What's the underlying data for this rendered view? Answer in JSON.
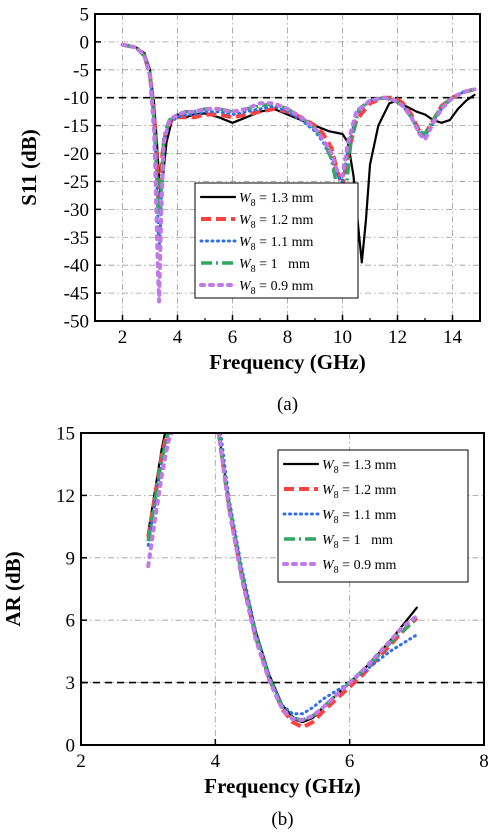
{
  "colors": {
    "series": [
      "#000000",
      "#ff4040",
      "#2f6fe8",
      "#2fa860",
      "#c07ae8"
    ],
    "refline": "#000000",
    "grid": "#9a9a9a"
  },
  "chart_data": [
    {
      "type": "line",
      "caption": "(a)",
      "xlabel": "Frequency (GHz)",
      "ylabel": "S11 (dB)",
      "xlim": [
        1,
        15
      ],
      "ylim": [
        -50,
        5
      ],
      "xticks": [
        2,
        4,
        6,
        8,
        10,
        12,
        14
      ],
      "yticks": [
        -50,
        -45,
        -40,
        -35,
        -30,
        -25,
        -20,
        -15,
        -10,
        -5,
        0,
        5
      ],
      "grid": true,
      "reference_line": -10,
      "legend_position": "center",
      "series": [
        {
          "name": "W8 = 1.3 mm",
          "x": [
            2,
            2.5,
            2.8,
            3.0,
            3.15,
            3.25,
            3.35,
            3.4,
            3.45,
            3.6,
            3.8,
            4.0,
            4.3,
            4.6,
            5.0,
            5.5,
            6.0,
            6.5,
            7.0,
            7.5,
            8.0,
            8.5,
            9.0,
            9.5,
            10.0,
            10.2,
            10.4,
            10.55,
            10.7,
            10.85,
            11.0,
            11.3,
            11.7,
            12.0,
            12.3,
            12.7,
            13.0,
            13.3,
            13.6,
            13.9,
            14.2,
            14.5,
            14.8
          ],
          "y": [
            -0.5,
            -1.0,
            -2.0,
            -5.0,
            -11.0,
            -18.0,
            -26.0,
            -27.5,
            -25.0,
            -18.0,
            -14.0,
            -13.0,
            -13.5,
            -13.0,
            -12.8,
            -13.5,
            -14.5,
            -13.5,
            -12.5,
            -12.0,
            -13.0,
            -14.0,
            -15.0,
            -16.0,
            -16.5,
            -18.0,
            -24.0,
            -32.0,
            -39.5,
            -32.0,
            -22.0,
            -15.0,
            -11.0,
            -10.5,
            -11.5,
            -12.5,
            -13.0,
            -14.0,
            -14.5,
            -14.0,
            -12.0,
            -10.5,
            -9.5
          ]
        },
        {
          "name": "W8 = 1.2 mm",
          "x": [
            2,
            2.5,
            2.8,
            3.0,
            3.15,
            3.25,
            3.3,
            3.38,
            3.45,
            3.6,
            3.8,
            4.0,
            4.3,
            4.6,
            5.0,
            5.5,
            6.0,
            6.5,
            7.0,
            7.5,
            8.0,
            8.5,
            9.0,
            9.3,
            9.6,
            9.8,
            10.0,
            10.2,
            10.5,
            11.0,
            11.5,
            11.9,
            12.2,
            12.5,
            12.8,
            13.0,
            13.3,
            13.6,
            14.0,
            14.4,
            14.8
          ],
          "y": [
            -0.5,
            -1.0,
            -2.5,
            -6.0,
            -13.0,
            -22.0,
            -28.0,
            -27.0,
            -20.0,
            -15.5,
            -14.0,
            -13.5,
            -13.5,
            -13.5,
            -13.0,
            -13.0,
            -13.5,
            -13.0,
            -12.5,
            -12.0,
            -12.5,
            -13.5,
            -15.0,
            -16.5,
            -19.0,
            -23.0,
            -26.0,
            -20.0,
            -14.0,
            -11.0,
            -10.0,
            -10.0,
            -11.0,
            -13.0,
            -16.0,
            -16.5,
            -14.0,
            -11.5,
            -10.0,
            -9.0,
            -8.5
          ]
        },
        {
          "name": "W8 = 1.1 mm",
          "x": [
            2,
            2.5,
            2.8,
            3.0,
            3.15,
            3.25,
            3.3,
            3.35,
            3.4,
            3.5,
            3.7,
            4.0,
            4.3,
            4.6,
            5.0,
            5.5,
            6.0,
            6.5,
            7.0,
            7.5,
            8.0,
            8.5,
            9.0,
            9.3,
            9.6,
            9.8,
            10.0,
            10.2,
            10.5,
            11.0,
            11.5,
            11.9,
            12.2,
            12.5,
            12.8,
            13.0,
            13.3,
            13.6,
            14.0,
            14.4,
            14.8
          ],
          "y": [
            -0.5,
            -1.0,
            -2.5,
            -6.0,
            -14.0,
            -26.0,
            -34.0,
            -37.0,
            -30.0,
            -18.0,
            -14.5,
            -13.5,
            -13.0,
            -13.0,
            -12.5,
            -12.5,
            -13.0,
            -12.5,
            -12.0,
            -11.5,
            -12.5,
            -14.0,
            -16.0,
            -18.0,
            -21.0,
            -24.0,
            -25.0,
            -19.0,
            -13.0,
            -10.5,
            -10.0,
            -10.5,
            -11.5,
            -13.5,
            -16.5,
            -17.0,
            -14.5,
            -12.0,
            -10.0,
            -9.0,
            -8.5
          ]
        },
        {
          "name": "W8 = 1   mm",
          "x": [
            2,
            2.5,
            2.8,
            3.0,
            3.15,
            3.25,
            3.3,
            3.35,
            3.42,
            3.5,
            3.7,
            4.0,
            4.3,
            4.6,
            5.0,
            5.5,
            6.0,
            6.5,
            7.0,
            7.5,
            8.0,
            8.5,
            9.0,
            9.3,
            9.6,
            9.8,
            10.0,
            10.1,
            10.3,
            10.6,
            11.0,
            11.5,
            11.9,
            12.2,
            12.5,
            12.8,
            13.0,
            13.3,
            13.6,
            14.0,
            14.4,
            14.8
          ],
          "y": [
            -0.5,
            -1.0,
            -2.5,
            -6.0,
            -14.0,
            -24.0,
            -30.0,
            -31.0,
            -25.0,
            -17.0,
            -14.0,
            -13.0,
            -12.5,
            -12.5,
            -12.0,
            -12.0,
            -12.5,
            -12.0,
            -11.5,
            -11.0,
            -12.0,
            -13.5,
            -15.5,
            -17.5,
            -21.0,
            -26.0,
            -32.5,
            -28.0,
            -18.0,
            -12.0,
            -10.5,
            -10.0,
            -10.5,
            -11.5,
            -13.5,
            -16.0,
            -16.5,
            -14.0,
            -11.5,
            -10.0,
            -9.0,
            -8.5
          ]
        },
        {
          "name": "W8 = 0.9 mm",
          "x": [
            2,
            2.5,
            2.8,
            3.0,
            3.15,
            3.22,
            3.28,
            3.33,
            3.4,
            3.5,
            3.7,
            4.0,
            4.3,
            4.6,
            5.0,
            5.5,
            6.0,
            6.5,
            7.0,
            7.5,
            8.0,
            8.5,
            9.0,
            9.3,
            9.6,
            9.8,
            10.0,
            10.2,
            10.5,
            11.0,
            11.5,
            11.9,
            12.2,
            12.5,
            12.8,
            13.0,
            13.3,
            13.6,
            14.0,
            14.4,
            14.8
          ],
          "y": [
            -0.5,
            -1.0,
            -2.5,
            -6.0,
            -16.0,
            -28.0,
            -40.0,
            -46.5,
            -32.0,
            -18.0,
            -14.0,
            -13.0,
            -12.5,
            -12.5,
            -12.0,
            -12.0,
            -12.5,
            -12.0,
            -11.0,
            -11.0,
            -12.0,
            -13.5,
            -15.5,
            -17.5,
            -20.0,
            -23.0,
            -24.0,
            -18.0,
            -12.5,
            -10.5,
            -10.0,
            -10.5,
            -11.5,
            -13.5,
            -16.5,
            -17.5,
            -14.5,
            -12.0,
            -10.0,
            -9.0,
            -8.5
          ]
        }
      ]
    },
    {
      "type": "line",
      "caption": "(b)",
      "xlabel": "Frequency (GHz)",
      "ylabel": "AR (dB)",
      "xlim": [
        2,
        8
      ],
      "ylim": [
        0,
        15
      ],
      "xticks": [
        2,
        4,
        6,
        8
      ],
      "yticks": [
        0,
        3,
        6,
        9,
        12,
        15
      ],
      "grid": true,
      "reference_line": 3,
      "legend_position": "top-right",
      "series": [
        {
          "name": "W8 = 1.3 mm",
          "segments": [
            {
              "x": [
                3.0,
                3.1,
                3.2,
                3.25
              ],
              "y": [
                10.2,
                12.2,
                14.2,
                15.0
              ]
            },
            {
              "x": [
                4.05,
                4.2,
                4.4,
                4.6,
                4.8,
                5.0,
                5.2,
                5.3,
                5.45,
                5.6,
                5.8,
                6.0,
                6.2,
                6.4,
                6.6,
                6.8,
                7.0
              ],
              "y": [
                15.0,
                11.8,
                8.3,
                5.5,
                3.4,
                1.9,
                1.2,
                1.1,
                1.3,
                1.8,
                2.4,
                3.0,
                3.6,
                4.3,
                5.0,
                5.8,
                6.6
              ]
            }
          ]
        },
        {
          "name": "W8 = 1.2 mm",
          "segments": [
            {
              "x": [
                3.0,
                3.1,
                3.2,
                3.28
              ],
              "y": [
                10.0,
                11.9,
                13.9,
                15.0
              ]
            },
            {
              "x": [
                4.05,
                4.2,
                4.4,
                4.6,
                4.8,
                5.0,
                5.15,
                5.3,
                5.45,
                5.6,
                5.8,
                6.0,
                6.2,
                6.4,
                6.6,
                6.8,
                7.0
              ],
              "y": [
                15.0,
                11.5,
                8.0,
                5.2,
                3.2,
                1.7,
                1.1,
                0.85,
                1.1,
                1.6,
                2.2,
                2.8,
                3.4,
                4.1,
                4.8,
                5.5,
                6.1
              ]
            }
          ]
        },
        {
          "name": "W8 = 1.1 mm",
          "segments": [
            {
              "x": [
                3.0,
                3.1,
                3.2,
                3.3
              ],
              "y": [
                9.6,
                11.6,
                13.6,
                15.0
              ]
            },
            {
              "x": [
                4.08,
                4.2,
                4.4,
                4.6,
                4.8,
                5.0,
                5.15,
                5.3,
                5.45,
                5.6,
                5.8,
                6.0,
                6.2,
                6.4,
                6.6,
                6.8,
                7.0
              ],
              "y": [
                15.0,
                11.9,
                8.4,
                5.5,
                3.3,
                1.9,
                1.5,
                1.5,
                1.8,
                2.2,
                2.6,
                3.0,
                3.5,
                4.0,
                4.5,
                4.9,
                5.3
              ]
            }
          ]
        },
        {
          "name": "W8 = 1   mm",
          "segments": [
            {
              "x": [
                3.0,
                3.1,
                3.2,
                3.3
              ],
              "y": [
                9.8,
                11.7,
                13.7,
                15.0
              ]
            },
            {
              "x": [
                4.05,
                4.2,
                4.4,
                4.6,
                4.8,
                5.0,
                5.15,
                5.3,
                5.45,
                5.6,
                5.8,
                6.0,
                6.2,
                6.4,
                6.6,
                6.8,
                7.0
              ],
              "y": [
                15.0,
                11.6,
                8.1,
                5.3,
                3.2,
                1.8,
                1.3,
                1.2,
                1.4,
                1.8,
                2.4,
                3.0,
                3.6,
                4.2,
                4.9,
                5.5,
                6.1
              ]
            }
          ]
        },
        {
          "name": "W8 = 0.9 mm",
          "segments": [
            {
              "x": [
                3.0,
                3.1,
                3.2,
                3.3,
                3.35
              ],
              "y": [
                8.6,
                10.8,
                12.9,
                14.6,
                15.0
              ]
            },
            {
              "x": [
                4.05,
                4.2,
                4.4,
                4.6,
                4.8,
                5.0,
                5.15,
                5.3,
                5.45,
                5.6,
                5.8,
                6.0,
                6.2,
                6.4,
                6.6,
                6.8,
                7.0
              ],
              "y": [
                15.0,
                11.4,
                7.9,
                5.1,
                3.1,
                1.7,
                1.25,
                1.2,
                1.4,
                1.8,
                2.4,
                3.0,
                3.6,
                4.3,
                5.0,
                5.7,
                6.2
              ]
            }
          ]
        }
      ]
    }
  ]
}
